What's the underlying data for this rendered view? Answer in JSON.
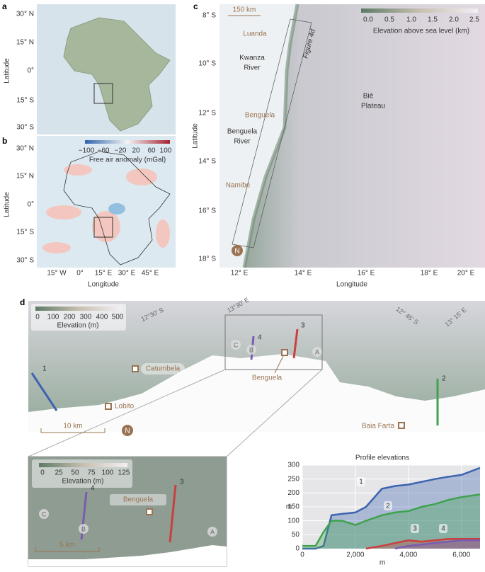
{
  "panels": {
    "a": {
      "letter": "a",
      "y_axis_label": "Latitude",
      "lat_labels": [
        "30° N",
        "15° N",
        "0°",
        "15° S",
        "30° S"
      ]
    },
    "b": {
      "letter": "b",
      "y_axis_label": "Latitude",
      "lat_labels": [
        "30° N",
        "15° N",
        "0°",
        "15° S",
        "30° S"
      ],
      "lon_labels": [
        "15° W",
        "0°",
        "15° E",
        "30° E",
        "45° E"
      ],
      "x_axis_label": "Longitude",
      "colorbar": {
        "ticks": [
          "−100",
          "−60",
          "−20",
          "20",
          "60",
          "100"
        ],
        "label": "Free air anomaly (mGal)"
      }
    },
    "c": {
      "letter": "c",
      "y_axis_label": "Latitude",
      "x_axis_label": "Longitude",
      "lat_labels": [
        "8° S",
        "10° S",
        "12° S",
        "14° S",
        "16° S",
        "18° S"
      ],
      "lon_labels": [
        "12° E",
        "14° E",
        "16° E",
        "18° E",
        "20° E"
      ],
      "scale_bar": "150 km",
      "colorbar": {
        "ticks": [
          "0.0",
          "0.5",
          "1.0",
          "1.5",
          "2.0",
          "2.5"
        ],
        "label": "Elevation above sea level (km)"
      },
      "places": {
        "luanda": "Luanda",
        "kwanza": [
          "Kwanza",
          "River"
        ],
        "figure": "Figure 4d",
        "bie": [
          "Bié",
          "Plateau"
        ],
        "benguela": "Benguela",
        "benguela_river": [
          "Benguela",
          "River"
        ],
        "namibe": "Namibe"
      },
      "north": "N"
    },
    "d": {
      "letter": "d",
      "colorbar": {
        "ticks": [
          "0",
          "100",
          "200",
          "300",
          "400",
          "500"
        ],
        "label": "Elevation (m)"
      },
      "grid_labels": [
        "12°30' S",
        "13°30' E",
        "12° 45' S",
        "13° 15' E"
      ],
      "places": {
        "catumbela": "Catumbela",
        "lobito": "Lobito",
        "benguela": "Benguela",
        "baia_farta": "Baia Farta"
      },
      "profiles": [
        "1",
        "2",
        "3",
        "4"
      ],
      "points": [
        "A",
        "B",
        "C"
      ],
      "scale_bar": "10 km",
      "north": "N"
    },
    "inset": {
      "colorbar": {
        "ticks": [
          "0",
          "25",
          "50",
          "75",
          "100",
          "125"
        ],
        "label": "Elevation (m)"
      },
      "profiles": [
        "3",
        "4"
      ],
      "points": [
        "A",
        "B",
        "C"
      ],
      "place": "Benguela",
      "scale_bar": "5 km"
    }
  },
  "chart_data": {
    "type": "area",
    "title": "Profile elevations",
    "x_label": "m",
    "y_label": "m",
    "x": [
      0,
      500,
      800,
      1100,
      1500,
      2000,
      2400,
      3000,
      3500,
      4000,
      4500,
      5000,
      5500,
      6000,
      6700
    ],
    "series": [
      {
        "name": "1",
        "color": "#3d64b0",
        "values": [
          0,
          0,
          10,
          120,
          125,
          130,
          150,
          215,
          225,
          230,
          240,
          250,
          258,
          265,
          290
        ]
      },
      {
        "name": "2",
        "color": "#3fa34d",
        "values": [
          10,
          10,
          60,
          100,
          100,
          85,
          100,
          120,
          130,
          135,
          150,
          160,
          175,
          185,
          195
        ]
      },
      {
        "name": "3",
        "color": "#c9403e",
        "values": [
          null,
          null,
          null,
          null,
          null,
          null,
          0,
          10,
          20,
          30,
          25,
          30,
          35,
          35,
          35
        ]
      },
      {
        "name": "4",
        "color": "#7a5cb0",
        "values": [
          null,
          null,
          null,
          null,
          null,
          null,
          null,
          null,
          0,
          10,
          15,
          20,
          25,
          30,
          30
        ]
      }
    ],
    "xlim": [
      0,
      6700
    ],
    "ylim": [
      0,
      300
    ],
    "xticks": [
      0,
      {
        "value": 2000,
        "label": "2,000"
      },
      {
        "value": 4000,
        "label": "4,000"
      },
      {
        "value": 6000,
        "label": "6,000"
      }
    ],
    "yticks": [
      0,
      50,
      100,
      150,
      200,
      250,
      300
    ],
    "grid": true
  }
}
